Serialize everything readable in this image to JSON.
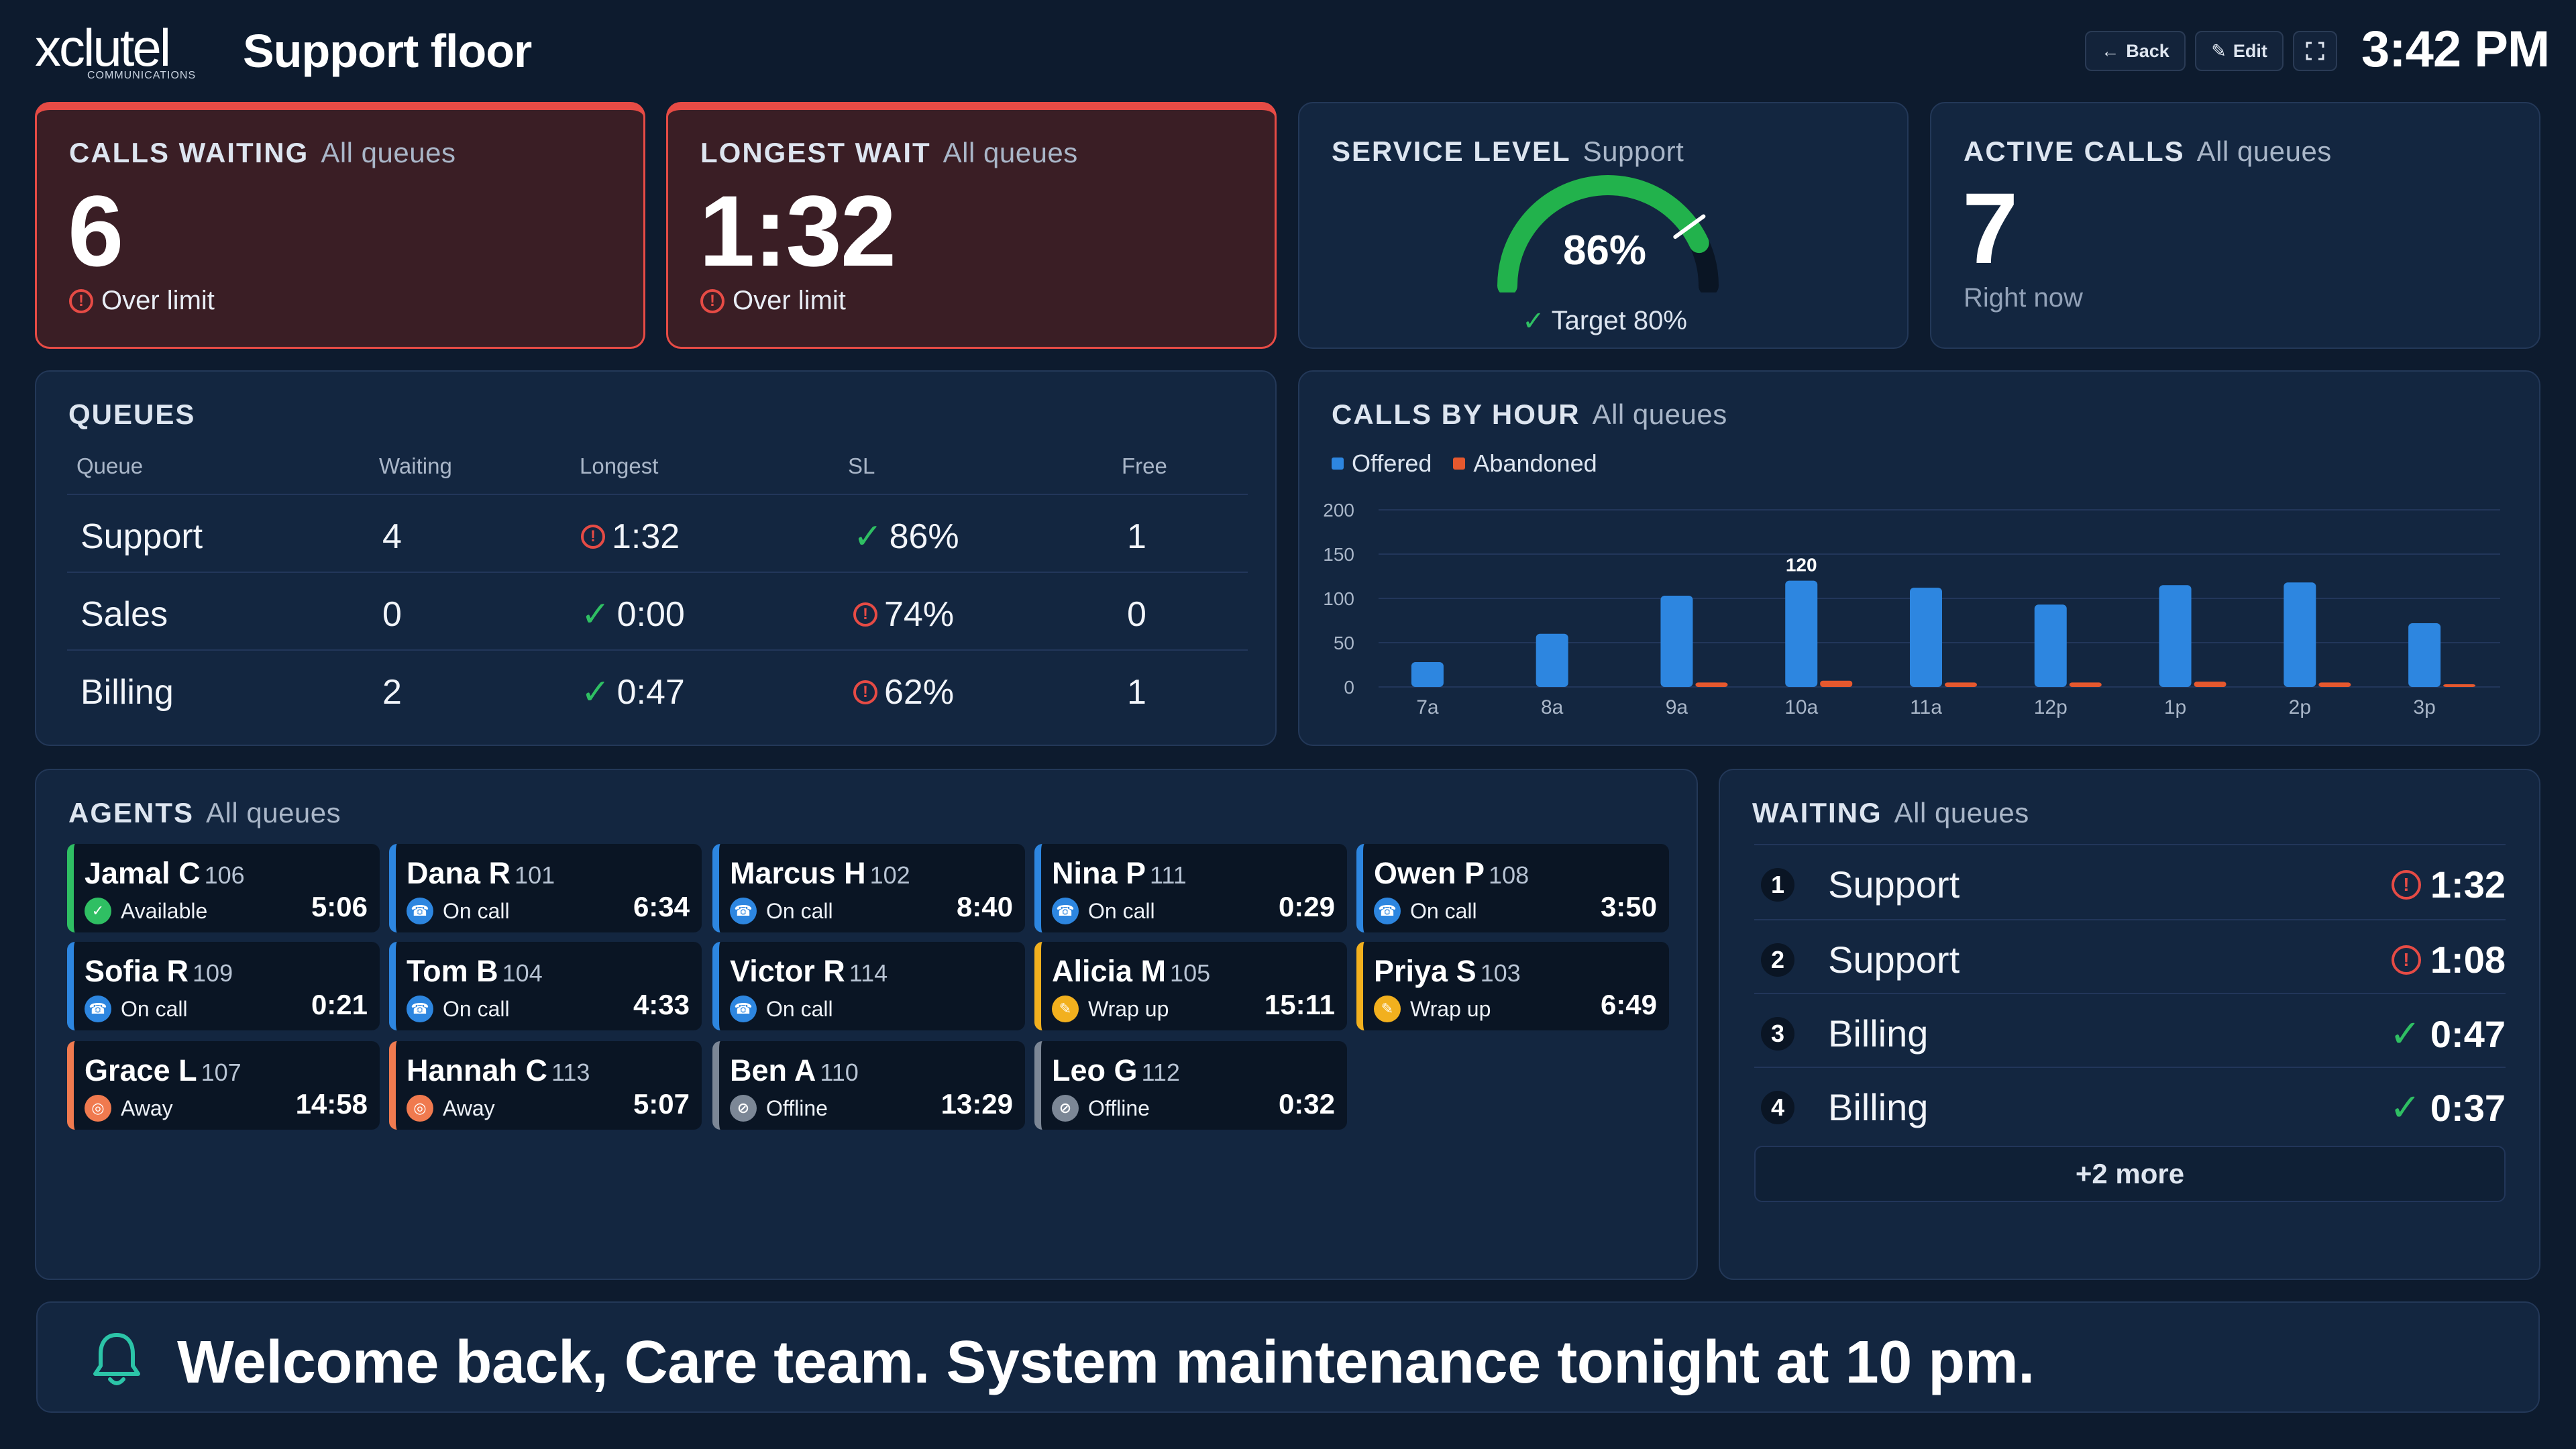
{
  "header": {
    "logo_word": "xclutel",
    "logo_sub": "COMMUNICATIONS",
    "title": "Support floor",
    "back_label": "Back",
    "edit_label": "Edit",
    "clock": "3:42 PM"
  },
  "kpis": {
    "calls_waiting": {
      "title": "CALLS WAITING",
      "scope": "All queues",
      "value": "6",
      "status": "Over limit"
    },
    "longest_wait": {
      "title": "LONGEST WAIT",
      "scope": "All queues",
      "value": "1:32",
      "status": "Over limit"
    },
    "service_level": {
      "title": "SERVICE LEVEL",
      "scope": "Support",
      "value": "86%",
      "percent": 86,
      "target": "Target 80%",
      "target_percent": 80
    },
    "active_calls": {
      "title": "ACTIVE CALLS",
      "scope": "All queues",
      "value": "7",
      "caption": "Right now"
    }
  },
  "queues": {
    "title": "QUEUES",
    "columns": [
      "Queue",
      "Waiting",
      "Longest",
      "SL",
      "Free"
    ],
    "rows": [
      {
        "queue": "Support",
        "waiting": "4",
        "longest": "1:32",
        "longest_state": "alert",
        "sl": "86%",
        "sl_state": "ok",
        "free": "1"
      },
      {
        "queue": "Sales",
        "waiting": "0",
        "longest": "0:00",
        "longest_state": "ok",
        "sl": "74%",
        "sl_state": "alert",
        "free": "0"
      },
      {
        "queue": "Billing",
        "waiting": "2",
        "longest": "0:47",
        "longest_state": "ok",
        "sl": "62%",
        "sl_state": "alert",
        "free": "1"
      }
    ]
  },
  "chart_data": {
    "type": "bar",
    "title": "CALLS BY HOUR",
    "subtitle": "All queues",
    "categories": [
      "7a",
      "8a",
      "9a",
      "10a",
      "11a",
      "12p",
      "1p",
      "2p",
      "3p"
    ],
    "series": [
      {
        "name": "Offered",
        "color": "#2d86e0",
        "values": [
          28,
          60,
          103,
          120,
          112,
          93,
          115,
          118,
          72
        ]
      },
      {
        "name": "Abandoned",
        "color": "#e5582e",
        "values": [
          0,
          0,
          5,
          7,
          5,
          5,
          6,
          5,
          3
        ]
      }
    ],
    "ylim": [
      0,
      200
    ],
    "yticks": [
      0,
      50,
      100,
      150,
      200
    ],
    "annotations": [
      {
        "category": "10a",
        "label": "120"
      }
    ],
    "legend": "top-left",
    "grid": true
  },
  "agents": {
    "title": "AGENTS",
    "scope": "All queues",
    "list": [
      {
        "name": "Jamal C",
        "ext": "106",
        "status": "Available",
        "time": "5:06",
        "kind": "available"
      },
      {
        "name": "Dana R",
        "ext": "101",
        "status": "On call",
        "time": "6:34",
        "kind": "oncall"
      },
      {
        "name": "Marcus H",
        "ext": "102",
        "status": "On call",
        "time": "8:40",
        "kind": "oncall"
      },
      {
        "name": "Nina P",
        "ext": "111",
        "status": "On call",
        "time": "0:29",
        "kind": "oncall"
      },
      {
        "name": "Owen P",
        "ext": "108",
        "status": "On call",
        "time": "3:50",
        "kind": "oncall"
      },
      {
        "name": "Sofia R",
        "ext": "109",
        "status": "On call",
        "time": "0:21",
        "kind": "oncall"
      },
      {
        "name": "Tom B",
        "ext": "104",
        "status": "On call",
        "time": "4:33",
        "kind": "oncall"
      },
      {
        "name": "Victor R",
        "ext": "114",
        "status": "On call",
        "time": "",
        "kind": "oncall"
      },
      {
        "name": "Alicia M",
        "ext": "105",
        "status": "Wrap up",
        "time": "15:11",
        "kind": "wrapup"
      },
      {
        "name": "Priya S",
        "ext": "103",
        "status": "Wrap up",
        "time": "6:49",
        "kind": "wrapup"
      },
      {
        "name": "Grace L",
        "ext": "107",
        "status": "Away",
        "time": "14:58",
        "kind": "away"
      },
      {
        "name": "Hannah C",
        "ext": "113",
        "status": "Away",
        "time": "5:07",
        "kind": "away"
      },
      {
        "name": "Ben A",
        "ext": "110",
        "status": "Offline",
        "time": "13:29",
        "kind": "offline"
      },
      {
        "name": "Leo G",
        "ext": "112",
        "status": "Offline",
        "time": "0:32",
        "kind": "offline"
      }
    ]
  },
  "waiting": {
    "title": "WAITING",
    "scope": "All queues",
    "rows": [
      {
        "pos": "1",
        "queue": "Support",
        "time": "1:32",
        "state": "alert"
      },
      {
        "pos": "2",
        "queue": "Support",
        "time": "1:08",
        "state": "alert"
      },
      {
        "pos": "3",
        "queue": "Billing",
        "time": "0:47",
        "state": "ok"
      },
      {
        "pos": "4",
        "queue": "Billing",
        "time": "0:37",
        "state": "ok"
      }
    ],
    "more_label": "+2 more"
  },
  "banner": {
    "message": "Welcome back, Care team. System maintenance tonight at 10 pm."
  },
  "colors": {
    "background": "#0d1b2e",
    "card": "#132640",
    "alert": "#e64b45",
    "ok": "#2fbf63",
    "on_call": "#2d86e0",
    "wrap_up": "#f2b01e",
    "away": "#f07a4f",
    "offline": "#7c8796",
    "bell": "#2cc4a8"
  }
}
